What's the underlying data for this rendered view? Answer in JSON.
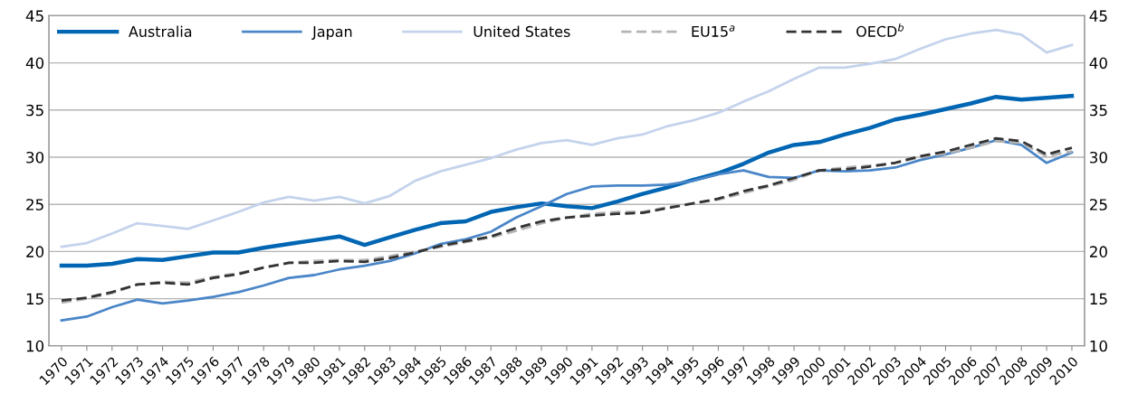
{
  "chart_data": {
    "type": "line",
    "categories": [
      "1970",
      "1971",
      "1972",
      "1973",
      "1974",
      "1975",
      "1976",
      "1977",
      "1978",
      "1979",
      "1980",
      "1981",
      "1982",
      "1983",
      "1984",
      "1985",
      "1986",
      "1987",
      "1988",
      "1989",
      "1990",
      "1991",
      "1992",
      "1993",
      "1994",
      "1995",
      "1996",
      "1997",
      "1998",
      "1999",
      "2000",
      "2001",
      "2002",
      "2003",
      "2004",
      "2005",
      "2006",
      "2007",
      "2008",
      "2009",
      "2010"
    ],
    "series": [
      {
        "name": "Australia",
        "color": "#0066b3",
        "line_style": "solid",
        "values": [
          18.5,
          18.5,
          18.7,
          19.2,
          19.1,
          19.5,
          19.9,
          19.9,
          20.4,
          20.8,
          21.2,
          21.6,
          20.7,
          21.5,
          22.3,
          23.0,
          23.2,
          24.2,
          24.7,
          25.1,
          24.8,
          24.6,
          25.3,
          26.1,
          26.8,
          27.6,
          28.3,
          29.3,
          30.5,
          31.3,
          31.6,
          32.4,
          33.1,
          34.0,
          34.5,
          35.1,
          35.7,
          36.4,
          36.1,
          36.3,
          36.5
        ]
      },
      {
        "name": "Japan",
        "color": "#4a86c8",
        "line_style": "solid",
        "values": [
          12.7,
          13.1,
          14.1,
          14.9,
          14.5,
          14.8,
          15.2,
          15.7,
          16.4,
          17.2,
          17.5,
          18.1,
          18.5,
          19.0,
          19.8,
          20.8,
          21.3,
          22.1,
          23.6,
          24.8,
          26.1,
          26.9,
          27.0,
          27.0,
          27.1,
          27.5,
          28.2,
          28.6,
          27.9,
          27.8,
          28.6,
          28.5,
          28.6,
          28.9,
          29.7,
          30.3,
          31.0,
          31.8,
          31.3,
          29.4,
          30.5
        ]
      },
      {
        "name": "United States",
        "color": "#c4d3ec",
        "line_style": "solid",
        "values": [
          20.5,
          20.9,
          21.9,
          23.0,
          22.7,
          22.4,
          23.3,
          24.2,
          25.2,
          25.8,
          25.4,
          25.8,
          25.1,
          25.9,
          27.5,
          28.5,
          29.2,
          29.9,
          30.8,
          31.5,
          31.8,
          31.3,
          32.0,
          32.4,
          33.3,
          33.9,
          34.7,
          35.9,
          37.0,
          38.3,
          39.5,
          39.5,
          39.9,
          40.4,
          41.5,
          42.5,
          43.1,
          43.5,
          43.0,
          41.1,
          41.9
        ]
      },
      {
        "name": "EU15$^{a}$",
        "color": "#b3b3b3",
        "line_style": "dashed",
        "values": [
          14.6,
          15.0,
          15.6,
          16.5,
          16.8,
          16.7,
          17.3,
          17.7,
          18.3,
          18.8,
          19.0,
          19.1,
          19.1,
          19.5,
          20.0,
          20.5,
          21.0,
          21.5,
          22.2,
          23.0,
          23.6,
          24.0,
          24.2,
          24.2,
          24.7,
          25.1,
          25.5,
          26.2,
          26.9,
          27.6,
          28.6,
          28.9,
          29.1,
          29.4,
          30.0,
          30.4,
          31.0,
          31.7,
          31.5,
          30.1,
          30.6
        ]
      },
      {
        "name": "OECD$^{b}$",
        "color": "#333333",
        "line_style": "dashed",
        "values": [
          14.8,
          15.1,
          15.7,
          16.5,
          16.7,
          16.5,
          17.2,
          17.6,
          18.3,
          18.8,
          18.8,
          19.0,
          18.9,
          19.3,
          19.9,
          20.6,
          21.1,
          21.6,
          22.5,
          23.2,
          23.6,
          23.8,
          24.0,
          24.1,
          24.6,
          25.1,
          25.6,
          26.4,
          27.0,
          27.8,
          28.6,
          28.7,
          29.0,
          29.4,
          30.1,
          30.6,
          31.3,
          32.0,
          31.7,
          30.3,
          31.0
        ]
      }
    ],
    "ylim": [
      10,
      45
    ],
    "yticks": [
      10,
      15,
      20,
      25,
      30,
      35,
      40,
      45
    ],
    "y2lim": [
      10,
      45
    ],
    "y2ticks": [
      10,
      15,
      20,
      25,
      30,
      35,
      40,
      45
    ],
    "grid": "y",
    "legend": "top left",
    "marker": "none"
  }
}
